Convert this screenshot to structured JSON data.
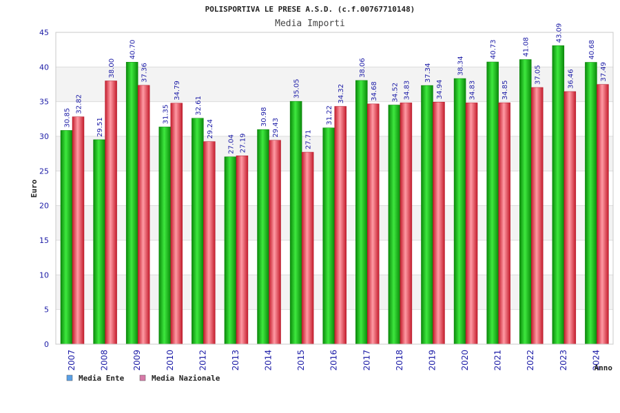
{
  "chart_data": {
    "type": "bar",
    "title": "POLISPORTIVA LE PRESE A.S.D. (c.f.00767710148)",
    "subtitle": "Media Importi",
    "xlabel": "Anno",
    "ylabel": "Euro",
    "ylim": [
      0,
      45
    ],
    "yticks": [
      "0",
      "5",
      "10",
      "15",
      "20",
      "25",
      "30",
      "35",
      "40",
      "45"
    ],
    "categories": [
      "2007",
      "2008",
      "2009",
      "2010",
      "2012",
      "2013",
      "2014",
      "2015",
      "2016",
      "2017",
      "2018",
      "2019",
      "2020",
      "2021",
      "2022",
      "2023",
      "2024"
    ],
    "series": [
      {
        "name": "Media Ente",
        "color": "#0fbf0f",
        "legend_color": "#5aa0e6",
        "values": [
          30.85,
          29.51,
          40.7,
          31.35,
          32.61,
          27.04,
          30.98,
          35.05,
          31.22,
          38.06,
          34.52,
          37.34,
          38.34,
          40.73,
          41.08,
          43.09,
          40.68
        ],
        "labels": [
          "30.85",
          "29.51",
          "40.70",
          "31.35",
          "32.61",
          "27.04",
          "30.98",
          "35.05",
          "31.22",
          "38.06",
          "34.52",
          "37.34",
          "38.34",
          "40.73",
          "41.08",
          "43.09",
          "40.68"
        ]
      },
      {
        "name": "Media Nazionale",
        "color": "#e83a4a",
        "legend_color": "#d77aa8",
        "values": [
          32.82,
          38.0,
          37.36,
          34.79,
          29.24,
          27.19,
          29.43,
          27.71,
          34.32,
          34.68,
          34.83,
          34.94,
          34.83,
          34.85,
          37.05,
          36.46,
          37.49
        ],
        "labels": [
          "32.82",
          "38.00",
          "37.36",
          "34.79",
          "29.24",
          "27.19",
          "29.43",
          "27.71",
          "34.32",
          "34.68",
          "34.83",
          "34.94",
          "34.83",
          "34.85",
          "37.05",
          "36.46",
          "37.49"
        ]
      }
    ],
    "grid": true,
    "legend": "bottom-left"
  }
}
